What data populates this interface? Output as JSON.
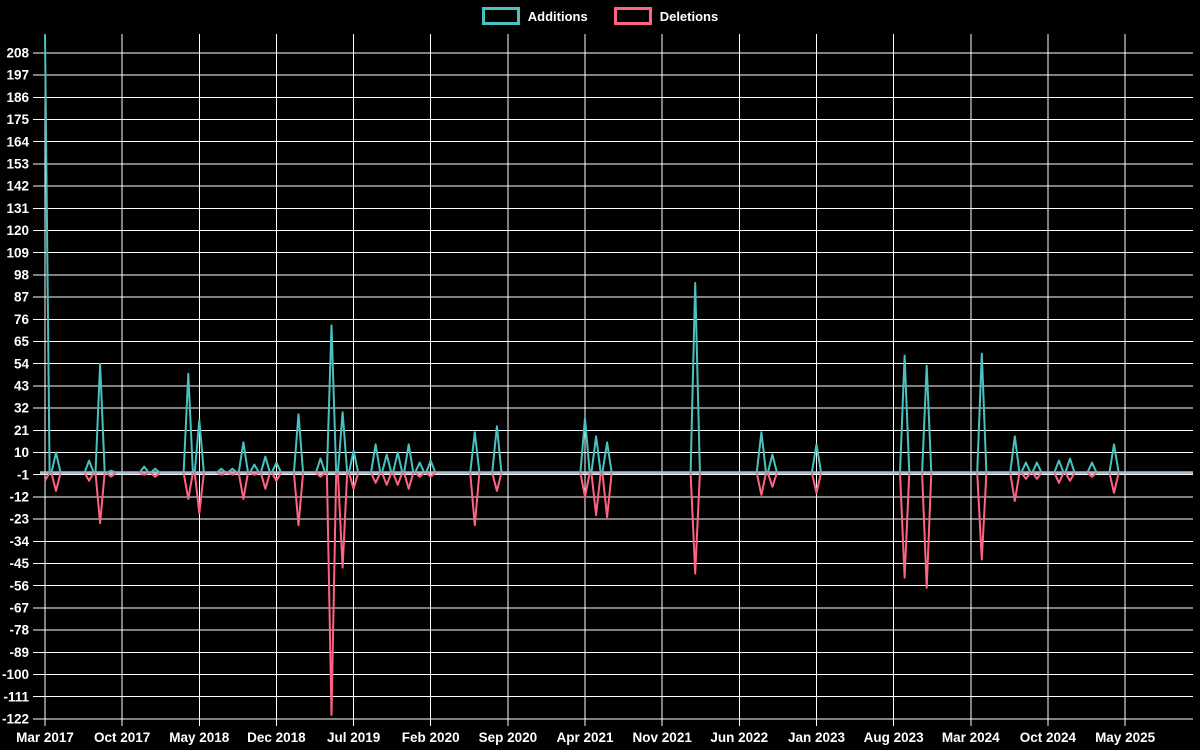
{
  "page": {
    "background": "#000000"
  },
  "chart_data": {
    "type": "line",
    "title": "",
    "legend_position": "top",
    "grid": {
      "on": true,
      "color": "#ffffff"
    },
    "baseline": {
      "value": 0,
      "color": "#b4c6d2"
    },
    "x_axis": {
      "start_label": "Mar 2017",
      "end_label": "May 2025",
      "months_total": 99,
      "tick_every_months": 7,
      "tick_labels": [
        "Mar 2017",
        "Oct 2017",
        "May 2018",
        "Dec 2018",
        "Jul 2019",
        "Feb 2020",
        "Sep 2020",
        "Apr 2021",
        "Nov 2021",
        "Jun 2022",
        "Jan 2023",
        "Aug 2023",
        "Mar 2024",
        "Oct 2024",
        "May 2025"
      ]
    },
    "y_axis": {
      "max": 208,
      "min": -122,
      "tick_step": 11,
      "tick_labels": [
        208,
        197,
        186,
        175,
        164,
        153,
        142,
        131,
        120,
        109,
        98,
        87,
        76,
        65,
        54,
        43,
        32,
        21,
        10,
        -1,
        -12,
        -23,
        -34,
        -45,
        -56,
        -67,
        -78,
        -89,
        -100,
        -111,
        -122
      ]
    },
    "series": [
      {
        "name": "Additions",
        "color": "#4bc0c0"
      },
      {
        "name": "Deletions",
        "color": "#ff6384"
      }
    ],
    "events": [
      {
        "month": "Mar 2017",
        "additions": 217,
        "deletions": -4
      },
      {
        "month": "Apr 2017",
        "additions": 10,
        "deletions": -9
      },
      {
        "month": "Jul 2017",
        "additions": 6,
        "deletions": -4
      },
      {
        "month": "Aug 2017",
        "additions": 54,
        "deletions": -25
      },
      {
        "month": "Sep 2017",
        "additions": 1,
        "deletions": -2
      },
      {
        "month": "Dec 2017",
        "additions": 3,
        "deletions": -1
      },
      {
        "month": "Jan 2018",
        "additions": 2,
        "deletions": -2
      },
      {
        "month": "Apr 2018",
        "additions": 49,
        "deletions": -13
      },
      {
        "month": "May 2018",
        "additions": 26,
        "deletions": -20
      },
      {
        "month": "Jul 2018",
        "additions": 2,
        "deletions": -1
      },
      {
        "month": "Aug 2018",
        "additions": 2,
        "deletions": -1
      },
      {
        "month": "Sep 2018",
        "additions": 15,
        "deletions": -13
      },
      {
        "month": "Oct 2018",
        "additions": 4,
        "deletions": -1
      },
      {
        "month": "Nov 2018",
        "additions": 8,
        "deletions": -8
      },
      {
        "month": "Dec 2018",
        "additions": 5,
        "deletions": -4
      },
      {
        "month": "Feb 2019",
        "additions": 29,
        "deletions": -26
      },
      {
        "month": "Apr 2019",
        "additions": 7,
        "deletions": -2
      },
      {
        "month": "May 2019",
        "additions": 73,
        "deletions": -120
      },
      {
        "month": "Jun 2019",
        "additions": 30,
        "deletions": -47
      },
      {
        "month": "Jul 2019",
        "additions": 11,
        "deletions": -8
      },
      {
        "month": "Sep 2019",
        "additions": 14,
        "deletions": -5
      },
      {
        "month": "Oct 2019",
        "additions": 9,
        "deletions": -6
      },
      {
        "month": "Nov 2019",
        "additions": 10,
        "deletions": -6
      },
      {
        "month": "Dec 2019",
        "additions": 14,
        "deletions": -8
      },
      {
        "month": "Jan 2020",
        "additions": 5,
        "deletions": -2
      },
      {
        "month": "Feb 2020",
        "additions": 6,
        "deletions": -2
      },
      {
        "month": "Jun 2020",
        "additions": 20,
        "deletions": -26
      },
      {
        "month": "Aug 2020",
        "additions": 23,
        "deletions": -9
      },
      {
        "month": "Apr 2021",
        "additions": 27,
        "deletions": -12
      },
      {
        "month": "May 2021",
        "additions": 18,
        "deletions": -21
      },
      {
        "month": "Jun 2021",
        "additions": 15,
        "deletions": -22
      },
      {
        "month": "Feb 2022",
        "additions": 94,
        "deletions": -50
      },
      {
        "month": "Aug 2022",
        "additions": 20,
        "deletions": -11
      },
      {
        "month": "Sep 2022",
        "additions": 9,
        "deletions": -7
      },
      {
        "month": "Jan 2023",
        "additions": 14,
        "deletions": -10
      },
      {
        "month": "Sep 2023",
        "additions": 58,
        "deletions": -52
      },
      {
        "month": "Nov 2023",
        "additions": 53,
        "deletions": -57
      },
      {
        "month": "Apr 2024",
        "additions": 59,
        "deletions": -43
      },
      {
        "month": "Jul 2024",
        "additions": 18,
        "deletions": -14
      },
      {
        "month": "Aug 2024",
        "additions": 5,
        "deletions": -3
      },
      {
        "month": "Sep 2024",
        "additions": 5,
        "deletions": -3
      },
      {
        "month": "Nov 2024",
        "additions": 6,
        "deletions": -5
      },
      {
        "month": "Dec 2024",
        "additions": 7,
        "deletions": -4
      },
      {
        "month": "Feb 2025",
        "additions": 5,
        "deletions": -2
      },
      {
        "month": "Apr 2025",
        "additions": 14,
        "deletions": -10
      }
    ]
  }
}
